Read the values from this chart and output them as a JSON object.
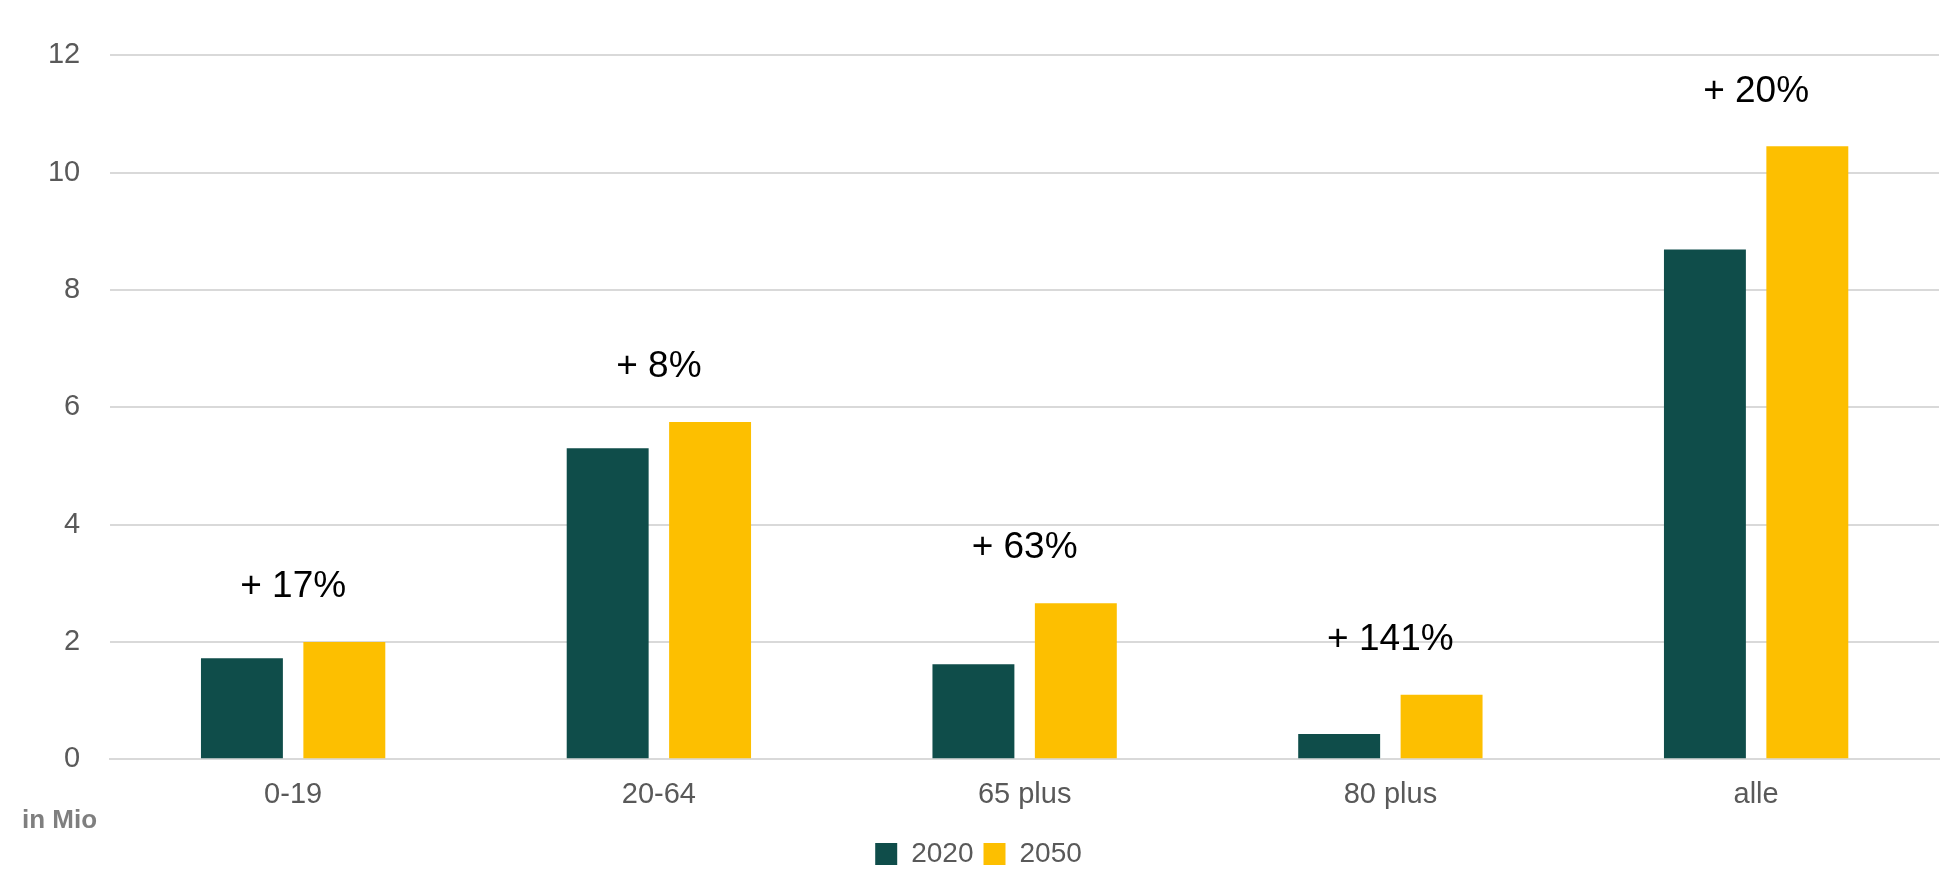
{
  "chart_data": {
    "type": "bar",
    "ylabel": "in Mio",
    "categories": [
      "0-19",
      "20-64",
      "65 plus",
      "80 plus",
      "alle"
    ],
    "series": [
      {
        "name": "2020",
        "color": "#0f4d4a",
        "values": [
          1.72,
          5.3,
          1.62,
          0.43,
          8.69
        ]
      },
      {
        "name": "2050",
        "color": "#fdbf00",
        "values": [
          2.0,
          5.75,
          2.66,
          1.1,
          10.45
        ]
      }
    ],
    "ylim": [
      0,
      12
    ],
    "yticks": [
      0,
      2,
      4,
      6,
      8,
      10,
      12
    ],
    "grid": "y",
    "legend": "bottom",
    "annotations": [
      "+ 17%",
      "+ 8%",
      "+ 63%",
      "+ 141%",
      "+ 20%"
    ]
  }
}
